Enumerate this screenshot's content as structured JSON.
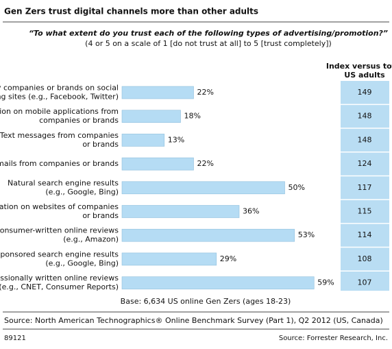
{
  "chart_data": {
    "type": "bar",
    "title": "Gen Zers trust digital channels more than other adults",
    "subtitle": [
      "“To what extent do you trust each of the following types of advertising/promotion?”",
      "(4 or 5 on a scale of 1 [do not trust at all] to 5 [trust completely])"
    ],
    "categories": [
      [
        "Posts by companies or brands on social",
        "networking sites (e.g., Facebook, Twitter)"
      ],
      [
        "Information on mobile applications from",
        "companies or brands"
      ],
      [
        "Text messages from companies",
        "or brands"
      ],
      [
        "Emails from companies or brands"
      ],
      [
        "Natural search engine results",
        "(e.g., Google, Bing)"
      ],
      [
        "Information on websites of companies",
        "or brands"
      ],
      [
        "Consumer-written online reviews",
        "(e.g., Amazon)"
      ],
      [
        "Sponsored search engine results",
        "(e.g., Google, Bing)"
      ],
      [
        "Professionally written online reviews",
        "(e.g., CNET, Consumer Reports)"
      ]
    ],
    "values": [
      22,
      18,
      13,
      22,
      50,
      36,
      53,
      29,
      59
    ],
    "value_labels": [
      "22%",
      "18%",
      "13%",
      "22%",
      "50%",
      "36%",
      "53%",
      "29%",
      "59%"
    ],
    "color": "#b5dcf4",
    "index_label": [
      "Index versus total",
      "US adults"
    ],
    "index_values": [
      149,
      148,
      148,
      124,
      117,
      115,
      114,
      108,
      107
    ],
    "base_note": "Base: 6,634 US online Gen Zers (ages 18-23)",
    "source": "Source: North American Technographics® Online Benchmark Survey (Part 1), Q2 2012 (US, Canada)",
    "id": "89121",
    "credit": "Source: Forrester Research, Inc."
  }
}
